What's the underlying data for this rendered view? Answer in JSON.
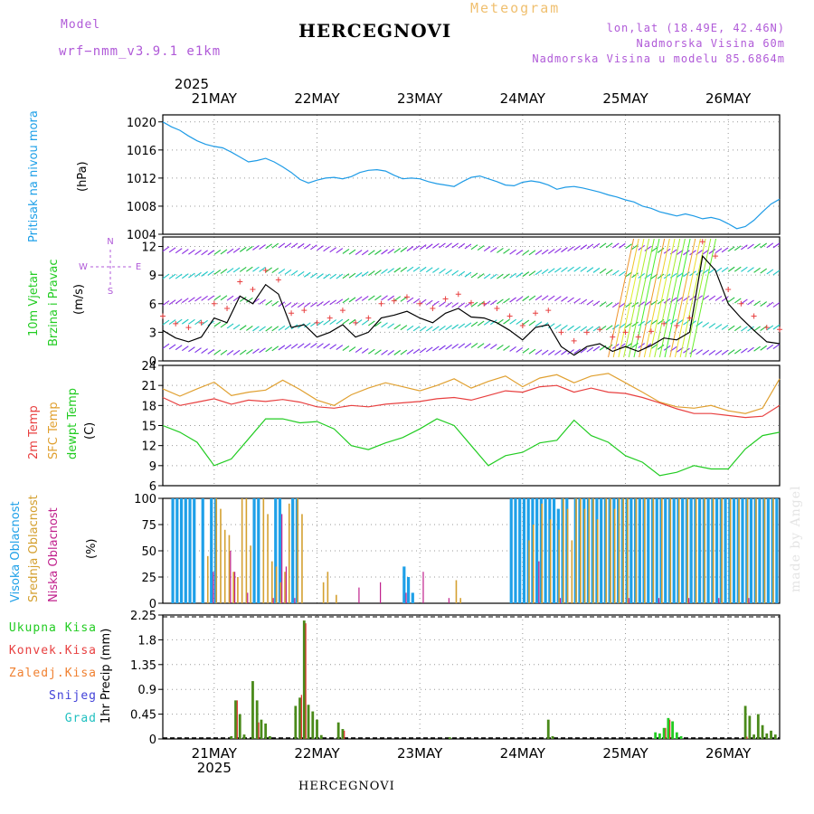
{
  "header": {
    "model_label": "Model",
    "model_name": "wrf−nmm_v3.9.1  e1km",
    "chart_kind": "Meteogram",
    "station": "HERCEGNOVI",
    "coords": "lon,lat (18.49E, 42.46N)",
    "altitude": "Nadmorska Visina 60m",
    "model_altitude": "Nadmorska Visina u modelu 85.6864m"
  },
  "footer": {
    "station": "HERCEGNOVI",
    "credit": "made by Angel"
  },
  "colors": {
    "pressure": "#1e9be6",
    "temp2m": "#e84040",
    "sfc": "#e0a030",
    "dewpt": "#22cc22",
    "high": "#1ea0e8",
    "mid": "#d4a030",
    "low": "#c0208c",
    "precip": "#4a8a1a",
    "convective": "#e03030",
    "freezing": "#f08030",
    "snow": "#4040d8",
    "hail": "#20c0c0"
  },
  "chart_data": [
    {
      "type": "line",
      "id": "pressure",
      "ylabel_main": "Pritisak na nivou mora",
      "unit": "(hPa)",
      "year": "2025",
      "days": [
        "21MAY",
        "22MAY",
        "23MAY",
        "24MAY",
        "25MAY",
        "26MAY"
      ],
      "ylim": [
        1004,
        1021
      ],
      "yticks": [
        "1004",
        "1008",
        "1012",
        "1016",
        "1020"
      ],
      "series": [
        {
          "x": [
            0,
            2,
            4,
            6,
            8,
            10,
            12,
            14,
            16,
            18,
            20,
            22,
            24,
            26,
            28,
            30,
            32,
            34,
            36,
            38,
            40,
            42,
            44,
            46,
            48,
            50,
            52,
            54,
            56,
            58,
            60,
            62,
            64,
            66,
            68,
            70,
            72,
            74,
            76,
            78,
            80,
            82,
            84,
            86,
            88,
            90,
            92,
            94,
            96,
            98,
            100,
            102,
            104,
            106,
            108,
            110,
            112,
            114,
            116,
            118,
            120,
            122,
            124,
            126,
            128,
            130,
            132,
            134,
            136,
            138,
            140,
            142,
            144
          ],
          "values": [
            1020.0,
            1019.3,
            1018.8,
            1018.0,
            1017.3,
            1016.8,
            1016.5,
            1016.3,
            1015.7,
            1015.0,
            1014.3,
            1014.5,
            1014.8,
            1014.3,
            1013.6,
            1012.8,
            1011.8,
            1011.3,
            1011.7,
            1012.0,
            1012.1,
            1011.9,
            1012.2,
            1012.8,
            1013.1,
            1013.2,
            1013.0,
            1012.4,
            1011.9,
            1012.0,
            1011.9,
            1011.5,
            1011.2,
            1011.0,
            1010.8,
            1011.5,
            1012.1,
            1012.3,
            1011.9,
            1011.5,
            1011.0,
            1010.9,
            1011.4,
            1011.6,
            1011.4,
            1011.0,
            1010.4,
            1010.7,
            1010.8,
            1010.6,
            1010.3,
            1010.0,
            1009.6,
            1009.3,
            1008.9,
            1008.6,
            1008.0,
            1007.7,
            1007.2,
            1006.9,
            1006.6,
            1006.9,
            1006.6,
            1006.2,
            1006.4,
            1006.1,
            1005.5,
            1004.8,
            1005.1,
            1006.0,
            1007.2,
            1008.3,
            1009.0
          ]
        }
      ]
    },
    {
      "type": "line",
      "id": "wind",
      "ylabel_main": "10m Vjetar",
      "ylabel_sub": "Brzina i Pravac",
      "unit": "(m/s)",
      "compass": [
        "N",
        "W",
        "E",
        "S"
      ],
      "ylim": [
        0,
        13
      ],
      "yticks": [
        "0",
        "3",
        "6",
        "9",
        "12"
      ],
      "series": [
        {
          "name": "speed",
          "x": [
            0,
            3,
            6,
            9,
            12,
            15,
            18,
            21,
            24,
            27,
            30,
            33,
            36,
            39,
            42,
            45,
            48,
            51,
            54,
            57,
            60,
            63,
            66,
            69,
            72,
            75,
            78,
            81,
            84,
            87,
            90,
            93,
            96,
            99,
            102,
            105,
            108,
            111,
            114,
            117,
            120,
            123,
            126,
            129,
            132,
            135,
            138,
            141,
            144
          ],
          "values": [
            3.2,
            2.4,
            2.0,
            2.5,
            4.5,
            4.0,
            6.8,
            6.0,
            8.0,
            7.0,
            3.5,
            3.8,
            2.5,
            3.0,
            3.8,
            2.5,
            3.0,
            4.5,
            4.8,
            5.2,
            4.5,
            4.0,
            5.0,
            5.5,
            4.6,
            4.5,
            4.0,
            3.2,
            2.2,
            3.5,
            3.8,
            1.5,
            0.6,
            1.5,
            1.8,
            1.0,
            1.5,
            1.0,
            1.6,
            2.4,
            2.2,
            3.0,
            11.0,
            9.5,
            6.0,
            4.5,
            3.2,
            2.0,
            1.8
          ]
        }
      ]
    },
    {
      "type": "line",
      "id": "temperature",
      "labels": [
        "2m Temp",
        "SFC Temp",
        "dewpt Temp"
      ],
      "unit": "(C)",
      "ylim": [
        6,
        24
      ],
      "yticks": [
        "6",
        "9",
        "12",
        "15",
        "18",
        "21",
        "24"
      ],
      "series": [
        {
          "name": "2m Temp",
          "x": [
            0,
            4,
            8,
            12,
            16,
            20,
            24,
            28,
            32,
            36,
            40,
            44,
            48,
            52,
            56,
            60,
            64,
            68,
            72,
            76,
            80,
            84,
            88,
            92,
            96,
            100,
            104,
            108,
            112,
            116,
            120,
            124,
            128,
            132,
            136,
            140,
            144
          ],
          "values": [
            19.2,
            18.0,
            18.5,
            19.0,
            18.2,
            18.8,
            18.6,
            18.9,
            18.5,
            17.8,
            17.6,
            18.0,
            17.8,
            18.2,
            18.4,
            18.6,
            19.0,
            19.2,
            18.8,
            19.5,
            20.2,
            20.0,
            20.8,
            21.0,
            20.0,
            20.6,
            20.0,
            19.8,
            19.2,
            18.4,
            17.5,
            16.8,
            16.8,
            16.5,
            16.2,
            16.4,
            18.0
          ]
        },
        {
          "name": "SFC Temp",
          "x": [
            0,
            4,
            8,
            12,
            16,
            20,
            24,
            28,
            32,
            36,
            40,
            44,
            48,
            52,
            56,
            60,
            64,
            68,
            72,
            76,
            80,
            84,
            88,
            92,
            96,
            100,
            104,
            108,
            112,
            116,
            120,
            124,
            128,
            132,
            136,
            140,
            144
          ],
          "values": [
            20.5,
            19.4,
            20.5,
            21.5,
            19.5,
            20.0,
            20.3,
            21.8,
            20.4,
            18.8,
            18.0,
            19.6,
            20.6,
            21.4,
            20.8,
            20.2,
            21.0,
            22.0,
            20.6,
            21.6,
            22.4,
            20.8,
            22.1,
            22.6,
            21.4,
            22.4,
            22.8,
            21.4,
            20.0,
            18.5,
            17.8,
            17.6,
            18.0,
            17.2,
            16.8,
            17.6,
            22.0
          ]
        },
        {
          "name": "dewpt Temp",
          "x": [
            0,
            4,
            8,
            12,
            16,
            20,
            24,
            28,
            32,
            36,
            40,
            44,
            48,
            52,
            56,
            60,
            64,
            68,
            72,
            76,
            80,
            84,
            88,
            92,
            96,
            100,
            104,
            108,
            112,
            116,
            120,
            124,
            128,
            132,
            136,
            140,
            144
          ],
          "values": [
            15.0,
            14.0,
            12.5,
            9.0,
            10.0,
            13.0,
            16.0,
            16.0,
            15.4,
            15.6,
            14.5,
            12.0,
            11.4,
            12.4,
            13.2,
            14.5,
            16.0,
            15.0,
            12.0,
            9.0,
            10.5,
            11.0,
            12.4,
            12.8,
            15.8,
            13.5,
            12.5,
            10.5,
            9.5,
            7.5,
            8.0,
            9.0,
            8.5,
            8.5,
            11.5,
            13.5,
            14.0
          ]
        }
      ]
    },
    {
      "type": "bar",
      "id": "clouds",
      "labels": [
        "Visoka Oblacnost",
        "Srednja Oblacnost",
        "Niska Oblacnost"
      ],
      "unit": "(%)",
      "ylim": [
        0,
        100
      ],
      "yticks": [
        "0",
        "25",
        "50",
        "75",
        "100"
      ],
      "series": [
        {
          "name": "Visoka Oblacnost",
          "x": [
            2,
            3,
            4,
            5,
            6,
            7,
            9,
            11,
            12,
            21,
            22,
            26,
            27,
            30,
            31,
            56,
            57,
            58,
            81,
            82,
            83,
            84,
            85,
            86,
            87,
            88,
            89,
            90,
            91,
            92,
            93,
            94,
            96,
            97,
            98,
            99,
            100,
            101,
            102,
            103,
            104,
            105,
            106,
            107,
            108,
            109,
            110,
            111,
            112,
            113,
            114,
            115,
            116,
            117,
            118,
            119,
            120,
            121,
            122,
            123,
            124,
            125,
            126,
            127,
            128,
            129,
            130,
            131,
            132,
            133,
            134,
            135,
            136,
            137,
            138,
            139,
            140,
            141,
            142,
            143
          ],
          "values": [
            100,
            100,
            100,
            100,
            100,
            100,
            100,
            100,
            100,
            100,
            100,
            100,
            100,
            100,
            100,
            35,
            25,
            10,
            100,
            100,
            100,
            100,
            100,
            100,
            100,
            100,
            100,
            100,
            100,
            90,
            100,
            100,
            100,
            100,
            100,
            100,
            100,
            100,
            100,
            100,
            100,
            100,
            100,
            100,
            100,
            100,
            100,
            100,
            100,
            100,
            100,
            100,
            100,
            100,
            100,
            100,
            100,
            100,
            100,
            100,
            100,
            100,
            100,
            100,
            100,
            100,
            100,
            100,
            100,
            100,
            100,
            100,
            100,
            100,
            100,
            100,
            100,
            100,
            100,
            100
          ]
        },
        {
          "name": "Srednja Oblacnost",
          "x": [
            10,
            12,
            13,
            14,
            15,
            16,
            17,
            18,
            19,
            20,
            23,
            24,
            25,
            26,
            27,
            28,
            29,
            31,
            32,
            37,
            38,
            40,
            68,
            69,
            85,
            86,
            88,
            90,
            92,
            93,
            94,
            95,
            96,
            97,
            98,
            99,
            100,
            101,
            103,
            104,
            105,
            106,
            107,
            108,
            110,
            112,
            114,
            116,
            118,
            120,
            122,
            124,
            126,
            128,
            130,
            132,
            134,
            136,
            138,
            140,
            142
          ],
          "values": [
            45,
            100,
            90,
            70,
            65,
            30,
            25,
            100,
            100,
            55,
            100,
            85,
            40,
            35,
            20,
            30,
            95,
            100,
            85,
            20,
            30,
            8,
            22,
            5,
            60,
            75,
            95,
            80,
            70,
            100,
            90,
            60,
            100,
            100,
            90,
            100,
            100,
            80,
            100,
            100,
            90,
            100,
            100,
            100,
            100,
            100,
            100,
            100,
            100,
            100,
            100,
            100,
            100,
            100,
            100,
            100,
            100,
            100,
            100,
            100,
            100
          ]
        },
        {
          "name": "Niska Oblacnost",
          "x": [
            11,
            15,
            16,
            19,
            25,
            27,
            28,
            30,
            45,
            50,
            56,
            60,
            66,
            87,
            92,
            108,
            115,
            122,
            129,
            136
          ],
          "values": [
            30,
            50,
            30,
            10,
            5,
            85,
            35,
            5,
            15,
            20,
            10,
            30,
            5,
            40,
            5,
            5,
            5,
            5,
            5,
            5
          ]
        }
      ]
    },
    {
      "type": "bar",
      "id": "precip",
      "labels": [
        "Ukupna Kisa",
        "Konvek.Kisa",
        "Zaledj.Kisa",
        "Snijeg",
        "Grad"
      ],
      "unit": "1hr Precip (mm)",
      "ylim": [
        0,
        2.25
      ],
      "yticks": [
        "0",
        "0.45",
        "0.9",
        "1.35",
        "1.8",
        "2.25"
      ],
      "series": [
        {
          "name": "Ukupna Kisa",
          "x": [
            16,
            17,
            18,
            19,
            21,
            22,
            23,
            24,
            25,
            31,
            32,
            33,
            34,
            35,
            36,
            37,
            41,
            42,
            67,
            90,
            91,
            115,
            116,
            117,
            118,
            119,
            120,
            121,
            136,
            137,
            138,
            139,
            140,
            141,
            142,
            143
          ],
          "values": [
            0.05,
            0.7,
            0.45,
            0.08,
            1.05,
            0.7,
            0.35,
            0.28,
            0.05,
            0.6,
            0.75,
            2.15,
            0.62,
            0.5,
            0.35,
            0.07,
            0.3,
            0.18,
            0.03,
            0.35,
            0.05,
            0.12,
            0.1,
            0.2,
            0.38,
            0.32,
            0.12,
            0.05,
            0.6,
            0.42,
            0.08,
            0.45,
            0.25,
            0.1,
            0.15,
            0.08
          ]
        },
        {
          "name": "Konvek.Kisa",
          "x": [
            17,
            22,
            32,
            33,
            42,
            117,
            118,
            136
          ],
          "values": [
            0.7,
            0.3,
            0.8,
            2.1,
            0.15,
            0.2,
            0.35,
            0.04
          ]
        }
      ]
    }
  ]
}
